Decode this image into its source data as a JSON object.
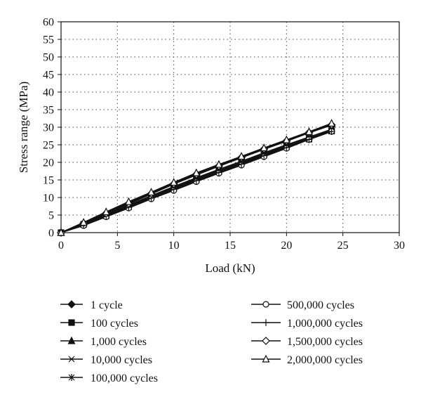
{
  "chart_data": {
    "type": "line",
    "title": "",
    "xlabel": "Load (kN)",
    "ylabel": "Stress range (MPa)",
    "xlim": [
      0,
      30
    ],
    "ylim": [
      0,
      60
    ],
    "xticks": [
      "0",
      "5",
      "10",
      "15",
      "20",
      "25",
      "30"
    ],
    "yticks": [
      "0",
      "5",
      "10",
      "15",
      "20",
      "25",
      "30",
      "35",
      "40",
      "45",
      "50",
      "55",
      "60"
    ],
    "grid": "dotted",
    "legend_position": "bottom",
    "series": [
      {
        "name": "1 cycle",
        "marker": "diamond-filled",
        "x": [
          0,
          2,
          4,
          6,
          8,
          10,
          12,
          14,
          16,
          18,
          20,
          22,
          24
        ],
        "y": [
          0,
          2.6,
          5.4,
          8.1,
          11.0,
          13.8,
          16.4,
          18.9,
          21.3,
          23.7,
          26.0,
          28.4,
          30.6
        ]
      },
      {
        "name": "100 cycles",
        "marker": "square-filled",
        "x": [
          0,
          2,
          4,
          6,
          8,
          10,
          12,
          14,
          16,
          18,
          20,
          22,
          24
        ],
        "y": [
          0,
          2.3,
          4.8,
          7.4,
          10.1,
          12.6,
          15.0,
          17.4,
          19.8,
          22.1,
          24.4,
          26.6,
          28.9
        ]
      },
      {
        "name": "1,000 cycles",
        "marker": "triangle-filled",
        "x": [
          0,
          2,
          4,
          6,
          8,
          10,
          12,
          14,
          16,
          18,
          20,
          22,
          24
        ],
        "y": [
          0,
          2.8,
          5.8,
          8.6,
          11.4,
          14.2,
          16.9,
          19.3,
          21.6,
          24.0,
          26.3,
          28.6,
          30.9
        ]
      },
      {
        "name": "10,000 cycles",
        "marker": "x",
        "x": [
          0,
          2,
          4,
          6,
          8,
          10,
          12,
          14,
          16,
          18,
          20,
          22,
          24
        ],
        "y": [
          0,
          2.5,
          5.1,
          7.8,
          10.5,
          13.1,
          15.6,
          18.0,
          20.3,
          22.7,
          25.0,
          27.2,
          29.4
        ]
      },
      {
        "name": "100,000 cycles",
        "marker": "asterisk",
        "x": [
          0,
          2,
          4,
          6,
          8,
          10,
          12,
          14,
          16,
          18,
          20,
          22,
          24
        ],
        "y": [
          0,
          2.4,
          4.9,
          7.6,
          10.3,
          12.9,
          15.3,
          17.7,
          20.0,
          22.4,
          24.7,
          26.9,
          29.1
        ]
      },
      {
        "name": "500,000 cycles",
        "marker": "circle-open",
        "x": [
          0,
          2,
          4,
          6,
          8,
          10,
          12,
          14,
          16,
          18,
          20,
          22,
          24
        ],
        "y": [
          0,
          2.0,
          4.5,
          7.0,
          9.6,
          12.0,
          14.5,
          16.9,
          19.2,
          21.6,
          24.0,
          26.5,
          28.8
        ]
      },
      {
        "name": "1,000,000 cycles",
        "marker": "plus",
        "x": [
          0,
          2,
          4,
          6,
          8,
          10,
          12,
          14,
          16,
          18,
          20,
          22,
          24
        ],
        "y": [
          0,
          2.2,
          4.7,
          7.2,
          9.8,
          12.3,
          14.8,
          17.1,
          19.5,
          21.9,
          24.2,
          26.5,
          28.8
        ]
      },
      {
        "name": "1,500,000 cycles",
        "marker": "diamond-open",
        "x": [
          0,
          2,
          4,
          6,
          8,
          10,
          12,
          14,
          16,
          18,
          20,
          22,
          24
        ],
        "y": [
          0,
          2.7,
          5.5,
          8.3,
          11.1,
          13.9,
          16.6,
          19.0,
          21.4,
          23.8,
          26.1,
          28.5,
          30.7
        ]
      },
      {
        "name": "2,000,000 cycles",
        "marker": "triangle-open",
        "x": [
          0,
          2,
          4,
          6,
          8,
          10,
          12,
          14,
          16,
          18,
          20,
          22,
          24
        ],
        "y": [
          0,
          2.9,
          5.9,
          8.8,
          11.5,
          14.3,
          17.0,
          19.4,
          21.7,
          24.1,
          26.4,
          28.7,
          31.1
        ]
      }
    ]
  }
}
